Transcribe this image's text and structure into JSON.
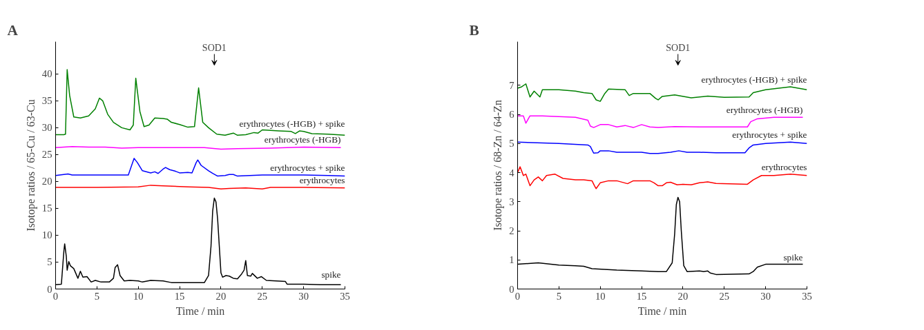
{
  "chart_data": [
    {
      "type": "line",
      "title": "A",
      "xlabel": "Time / min",
      "ylabel": "Isotope ratios / 65-Cu / 63-Cu",
      "xlim": [
        0,
        35
      ],
      "ylim": [
        0,
        46
      ],
      "xticks": [
        0,
        5,
        10,
        15,
        20,
        25,
        30,
        35
      ],
      "yticks": [
        0,
        5,
        10,
        15,
        20,
        25,
        30,
        35,
        40
      ],
      "annotations": [
        "SOD1"
      ],
      "series": [
        {
          "name": "erythrocytes (-HGB) + spike",
          "color": "#008000",
          "x": [
            0,
            1.0,
            1.2,
            1.4,
            1.7,
            2.2,
            3,
            4,
            4.8,
            5.3,
            5.7,
            6.3,
            7,
            8,
            9,
            9.4,
            9.7,
            10.2,
            10.7,
            11.3,
            12,
            13,
            13.5,
            14,
            15,
            16,
            16.8,
            17.3,
            17.8,
            18.5,
            19.5,
            20.5,
            21.5,
            22,
            23,
            24,
            24.5,
            25,
            26,
            27,
            28.5,
            29,
            29.5,
            30,
            31,
            33,
            35
          ],
          "values": [
            28.7,
            28.7,
            28.8,
            40.8,
            36,
            32,
            31.8,
            32.2,
            33.5,
            35.5,
            35,
            32.5,
            31,
            30,
            29.6,
            30.5,
            39.2,
            33,
            30.2,
            30.5,
            31.8,
            31.7,
            31.6,
            31,
            30.6,
            30.1,
            30.2,
            37.4,
            31,
            30,
            28.8,
            28.6,
            29,
            28.6,
            28.7,
            29.1,
            29,
            29.6,
            29.5,
            29.4,
            29.3,
            28.9,
            29.4,
            29.3,
            28.9,
            28.8,
            28.6
          ]
        },
        {
          "name": "erythrocytes (-HGB)",
          "color": "#ff00ff",
          "x": [
            0,
            2,
            4,
            6,
            8,
            10,
            14,
            18,
            20,
            22,
            26,
            30,
            34.5
          ],
          "values": [
            26.3,
            26.5,
            26.4,
            26.4,
            26.2,
            26.3,
            26.3,
            26.3,
            26.0,
            26.1,
            26.2,
            26.4,
            26.3
          ]
        },
        {
          "name": "erythrocytes + spike",
          "color": "#0000ff",
          "x": [
            0,
            1.5,
            2,
            5,
            8.8,
            9.2,
            9.5,
            9.9,
            10.5,
            11.5,
            12,
            12.4,
            13,
            13.3,
            13.8,
            14.5,
            15,
            16,
            16.5,
            17,
            17.2,
            17.6,
            18.5,
            19,
            19.6,
            20.5,
            21,
            21.5,
            22,
            25,
            30,
            33,
            35
          ],
          "values": [
            21.1,
            21.4,
            21.2,
            21.2,
            21.2,
            23,
            24.3,
            23.5,
            22,
            21.6,
            21.8,
            21.5,
            22.3,
            22.6,
            22.2,
            21.9,
            21.6,
            21.7,
            21.6,
            23.5,
            24,
            23,
            22,
            21.5,
            21.0,
            21.1,
            21.3,
            21.3,
            21.0,
            21.2,
            21.2,
            21.1,
            21.0
          ]
        },
        {
          "name": "erythrocytes",
          "color": "#ff0000",
          "x": [
            0,
            5,
            10,
            11.5,
            13,
            16,
            18.5,
            20,
            21,
            23,
            25,
            26,
            30,
            35
          ],
          "values": [
            18.9,
            18.9,
            19.0,
            19.3,
            19.2,
            19.0,
            18.9,
            18.6,
            18.7,
            18.8,
            18.6,
            18.9,
            18.9,
            18.8
          ]
        },
        {
          "name": "spike",
          "color": "#000000",
          "x": [
            0,
            0.7,
            0.9,
            1.0,
            1.1,
            1.3,
            1.4,
            1.6,
            1.8,
            2.2,
            2.7,
            3.0,
            3.3,
            3.8,
            4.3,
            4.8,
            5.5,
            6.5,
            7.0,
            7.2,
            7.5,
            7.8,
            8.3,
            9,
            10,
            10.5,
            11.5,
            13,
            14,
            16,
            18,
            18.5,
            18.8,
            19.0,
            19.2,
            19.4,
            19.6,
            19.8,
            20.0,
            20.2,
            20.6,
            21,
            21.5,
            22,
            22.5,
            22.8,
            23.0,
            23.2,
            23.6,
            23.8,
            24.4,
            24.9,
            25.5,
            27.8,
            28,
            30,
            32,
            34.5
          ],
          "values": [
            0.8,
            0.9,
            5,
            7,
            8.4,
            6,
            3.5,
            5.1,
            4.3,
            3.8,
            2,
            3.3,
            2.2,
            2.3,
            1.3,
            1.6,
            1.3,
            1.3,
            2.0,
            4,
            4.5,
            2.5,
            1.5,
            1.6,
            1.5,
            1.3,
            1.6,
            1.5,
            1.2,
            1.2,
            1.2,
            2.5,
            8,
            14.5,
            16.9,
            16.2,
            13,
            8,
            3,
            2.2,
            2.5,
            2.4,
            2.0,
            1.9,
            2.8,
            3.5,
            5.3,
            2.5,
            2.4,
            2.9,
            2.0,
            2.3,
            1.6,
            1.4,
            0.9,
            0.9,
            0.8,
            0.8
          ]
        }
      ]
    },
    {
      "type": "line",
      "title": "B",
      "xlabel": "Time / min",
      "ylabel": "Isotope ratios / 68-Zn / 64-Zn",
      "xlim": [
        0,
        35
      ],
      "ylim": [
        0,
        8.5
      ],
      "xticks": [
        0,
        5,
        10,
        15,
        20,
        25,
        30,
        35
      ],
      "yticks": [
        0,
        1,
        2,
        3,
        4,
        5,
        6,
        7
      ],
      "annotations": [
        "SOD1"
      ],
      "series": [
        {
          "name": "erythrocytes (-HGB) + spike",
          "color": "#008000",
          "x": [
            0,
            0.5,
            1,
            1.5,
            2,
            2.7,
            3,
            5,
            7,
            8,
            9,
            9.5,
            10,
            10.5,
            11,
            13,
            13.5,
            14,
            16,
            16.7,
            17,
            17.5,
            19,
            21,
            23,
            25,
            28,
            28.5,
            30,
            33,
            35
          ],
          "values": [
            6.9,
            6.95,
            7.05,
            6.6,
            6.8,
            6.6,
            6.85,
            6.85,
            6.8,
            6.75,
            6.72,
            6.5,
            6.45,
            6.7,
            6.87,
            6.85,
            6.65,
            6.72,
            6.72,
            6.55,
            6.5,
            6.62,
            6.67,
            6.57,
            6.63,
            6.59,
            6.6,
            6.75,
            6.85,
            6.95,
            6.85
          ]
        },
        {
          "name": "erythrocytes (-HGB)",
          "color": "#ff00ff",
          "x": [
            0,
            0.7,
            1,
            1.5,
            3,
            7,
            8.5,
            8.8,
            9.2,
            10,
            11,
            12,
            13,
            14,
            15,
            16,
            17,
            19,
            22,
            27.8,
            28.2,
            29,
            31,
            34.5
          ],
          "values": [
            5.95,
            5.95,
            5.7,
            5.95,
            5.95,
            5.9,
            5.8,
            5.6,
            5.55,
            5.65,
            5.65,
            5.57,
            5.62,
            5.55,
            5.65,
            5.57,
            5.55,
            5.58,
            5.57,
            5.57,
            5.75,
            5.85,
            5.9,
            5.9
          ]
        },
        {
          "name": "erythrocytes + spike",
          "color": "#0000ff",
          "x": [
            0,
            5,
            8.5,
            8.8,
            9.2,
            9.7,
            10,
            11,
            12,
            13.5,
            15,
            16,
            17,
            18.5,
            19.5,
            20.5,
            22,
            24,
            27.5,
            28,
            28.5,
            30,
            33,
            35
          ],
          "values": [
            5.05,
            5.0,
            4.95,
            4.9,
            4.67,
            4.68,
            4.75,
            4.75,
            4.7,
            4.7,
            4.7,
            4.66,
            4.66,
            4.7,
            4.75,
            4.7,
            4.7,
            4.68,
            4.68,
            4.85,
            4.95,
            5.0,
            5.05,
            5.0
          ]
        },
        {
          "name": "erythrocytes",
          "color": "#ff0000",
          "x": [
            0,
            0.3,
            0.7,
            1.0,
            1.5,
            2,
            2.5,
            3,
            3.5,
            4.5,
            5.5,
            7,
            8,
            9,
            9.3,
            9.5,
            10,
            11,
            12,
            13.3,
            14,
            16,
            16.5,
            17,
            17.5,
            18,
            18.5,
            19.3,
            20,
            21,
            22,
            23,
            24,
            27.8,
            28.5,
            29.5,
            31,
            33,
            35
          ],
          "values": [
            4.0,
            4.2,
            3.9,
            3.95,
            3.55,
            3.75,
            3.85,
            3.72,
            3.9,
            3.95,
            3.8,
            3.75,
            3.75,
            3.72,
            3.55,
            3.45,
            3.65,
            3.72,
            3.72,
            3.62,
            3.72,
            3.72,
            3.65,
            3.55,
            3.55,
            3.65,
            3.67,
            3.58,
            3.6,
            3.58,
            3.65,
            3.68,
            3.63,
            3.6,
            3.75,
            3.9,
            3.9,
            3.95,
            3.9
          ]
        },
        {
          "name": "spike",
          "color": "#000000",
          "x": [
            0,
            2.5,
            5,
            7,
            8,
            9,
            12,
            15,
            17,
            18,
            18.7,
            19,
            19.2,
            19.4,
            19.6,
            19.8,
            20.1,
            20.5,
            22,
            22.5,
            23,
            23.3,
            24,
            28,
            28.5,
            29,
            30,
            32,
            34.5
          ],
          "values": [
            0.85,
            0.9,
            0.82,
            0.8,
            0.78,
            0.7,
            0.65,
            0.62,
            0.6,
            0.6,
            0.9,
            1.9,
            2.9,
            3.15,
            3.0,
            2.0,
            0.8,
            0.6,
            0.62,
            0.6,
            0.62,
            0.55,
            0.5,
            0.52,
            0.6,
            0.75,
            0.85,
            0.85,
            0.85
          ]
        }
      ]
    }
  ]
}
